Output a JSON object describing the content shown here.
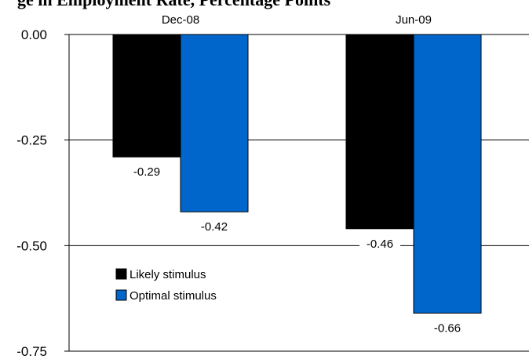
{
  "chart_data": {
    "type": "bar",
    "title": "ge in Employment Rate, Percentage Points",
    "categories": [
      "Dec-08",
      "Jun-09"
    ],
    "series": [
      {
        "name": "Likely stimulus",
        "color": "#000000",
        "values": [
          -0.29,
          -0.46
        ]
      },
      {
        "name": "Optimal stimulus",
        "color": "#0066CC",
        "values": [
          -0.42,
          -0.66
        ]
      }
    ],
    "data_labels": [
      [
        "-0.29",
        "-0.46"
      ],
      [
        "-0.42",
        "-0.66"
      ]
    ],
    "yticks": [
      0.0,
      -0.25,
      -0.5,
      -0.75
    ],
    "ytick_labels": [
      "0.00",
      "-0.25",
      "-0.50",
      "-0.75"
    ],
    "ylim": [
      -0.75,
      0
    ],
    "grid": true,
    "category_labels_position": "top",
    "legend_position": "bottom-left"
  }
}
